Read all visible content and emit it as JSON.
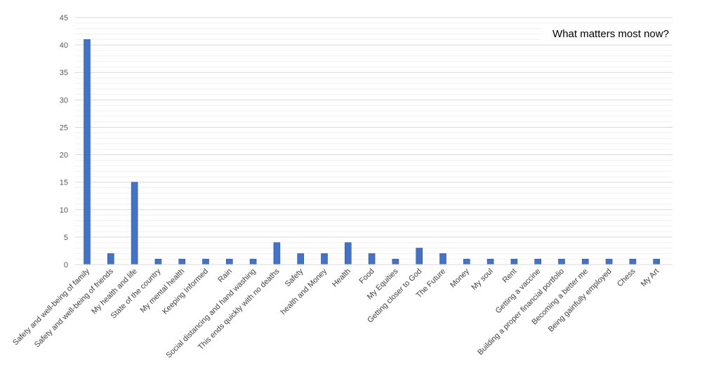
{
  "chart_data": {
    "type": "bar",
    "title": "What matters most now?",
    "xlabel": "",
    "ylabel": "",
    "ylim": [
      0,
      45
    ],
    "yticks": [
      0,
      5,
      10,
      15,
      20,
      25,
      30,
      35,
      40,
      45
    ],
    "grid": true,
    "legend": "none",
    "bar_color": "#4472C4",
    "categories": [
      "Safety and well-being of family",
      "Safety and well-being of friends",
      "My health and life",
      "State of the country",
      "My mental health",
      "Keeping Informed",
      "Rain",
      "Social distancing and hand washing",
      "This ends quickly with no deaths",
      "Safety",
      "health and Money",
      "Health",
      "Food",
      "My Equities",
      "Getting closer to God",
      "The Future",
      "Money",
      "My soul",
      "Rent",
      "Getting a vaccine",
      "Building a proper financial portfolio",
      "Becoming a better me",
      "Being gainfully employed",
      "Chess",
      "My Art"
    ],
    "values": [
      41,
      2,
      15,
      1,
      1,
      1,
      1,
      1,
      4,
      2,
      2,
      4,
      2,
      1,
      3,
      2,
      1,
      1,
      1,
      1,
      1,
      1,
      1,
      1,
      1
    ]
  }
}
